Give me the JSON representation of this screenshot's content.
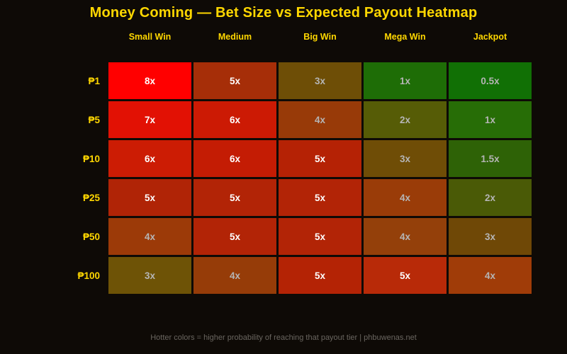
{
  "title": "Money Coming — Bet Size vs Expected Payout Heatmap",
  "footer": "Hotter colors = higher probability of reaching that payout tier | phbuwenas.net",
  "colors": {
    "background": "#0e0a06",
    "accent_gold": "#ffd700",
    "grid_line": "#000000",
    "text_bright": "#ffffff",
    "text_dim": "#b5b5b5",
    "footer_text": "#6a6660"
  },
  "chart_data": {
    "type": "heatmap",
    "title": "Money Coming — Bet Size vs Expected Payout Heatmap",
    "xlabel_categories_note": "payout tiers",
    "ylabel_categories_note": "bet sizes",
    "columns": [
      "Small Win",
      "Medium",
      "Big Win",
      "Mega Win",
      "Jackpot"
    ],
    "rows": [
      "₱1",
      "₱5",
      "₱10",
      "₱25",
      "₱50",
      "₱100"
    ],
    "values": [
      [
        "8x",
        "5x",
        "3x",
        "1x",
        "0.5x"
      ],
      [
        "7x",
        "6x",
        "4x",
        "2x",
        "1x"
      ],
      [
        "6x",
        "6x",
        "5x",
        "3x",
        "1.5x"
      ],
      [
        "5x",
        "5x",
        "5x",
        "4x",
        "2x"
      ],
      [
        "4x",
        "5x",
        "5x",
        "4x",
        "3x"
      ],
      [
        "3x",
        "4x",
        "5x",
        "5x",
        "4x"
      ]
    ],
    "cell_colors": [
      [
        "#ff0000",
        "#a62e08",
        "#6e4e06",
        "#1e6d06",
        "#117005"
      ],
      [
        "#e21104",
        "#cc1a04",
        "#983a08",
        "#565c06",
        "#276d06"
      ],
      [
        "#cc1c04",
        "#c41c04",
        "#b52205",
        "#6f4d06",
        "#2e6206"
      ],
      [
        "#b02406",
        "#b22406",
        "#b22406",
        "#9a3c08",
        "#4a5a06"
      ],
      [
        "#9c3a08",
        "#b22406",
        "#b22406",
        "#94400a",
        "#6f4806"
      ],
      [
        "#6e5306",
        "#963c08",
        "#b42305",
        "#b82a08",
        "#a03c08"
      ]
    ],
    "cell_text_colors": [
      [
        "#ffffff",
        "#ffffff",
        "#b5b5b5",
        "#b5b5b5",
        "#b5b5b5"
      ],
      [
        "#ffffff",
        "#ffffff",
        "#b5b5b5",
        "#b5b5b5",
        "#b5b5b5"
      ],
      [
        "#ffffff",
        "#ffffff",
        "#ffffff",
        "#b5b5b5",
        "#b5b5b5"
      ],
      [
        "#ffffff",
        "#ffffff",
        "#ffffff",
        "#b5b5b5",
        "#b5b5b5"
      ],
      [
        "#b5b5b5",
        "#ffffff",
        "#ffffff",
        "#b5b5b5",
        "#b5b5b5"
      ],
      [
        "#b5b5b5",
        "#b5b5b5",
        "#ffffff",
        "#ffffff",
        "#b5b5b5"
      ]
    ],
    "legend_note": "Hotter colors = higher probability of reaching that payout tier",
    "grid": false,
    "legend_position": "none"
  }
}
